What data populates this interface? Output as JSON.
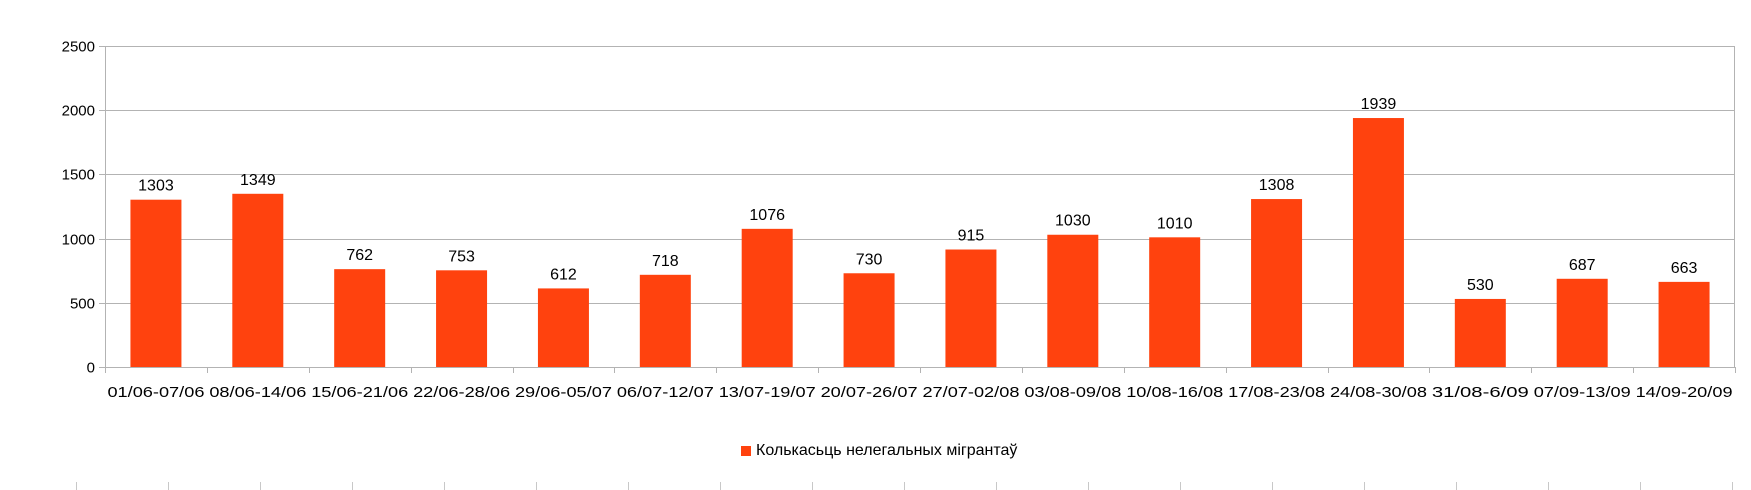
{
  "chart_data": {
    "type": "bar",
    "categories": [
      "01/06-07/06",
      "08/06-14/06",
      "15/06-21/06",
      "22/06-28/06",
      "29/06-05/07",
      "06/07-12/07",
      "13/07-19/07",
      "20/07-26/07",
      "27/07-02/08",
      "03/08-09/08",
      "10/08-16/08",
      "17/08-23/08",
      "24/08-30/08",
      "31/08-6/09",
      "07/09-13/09",
      "14/09-20/09"
    ],
    "series": [
      {
        "name": "Колькасьць нелегальных мігрантаў",
        "values": [
          1303,
          1349,
          762,
          753,
          612,
          718,
          1076,
          730,
          915,
          1030,
          1010,
          1308,
          1939,
          530,
          687,
          663
        ],
        "color": "#ff420e"
      }
    ],
    "ylim": [
      0,
      2500
    ],
    "yticks": [
      0,
      500,
      1000,
      1500,
      2000,
      2500
    ],
    "grid": true,
    "data_labels": true,
    "legend_position": "bottom",
    "title": "",
    "xlabel": "",
    "ylabel": ""
  }
}
